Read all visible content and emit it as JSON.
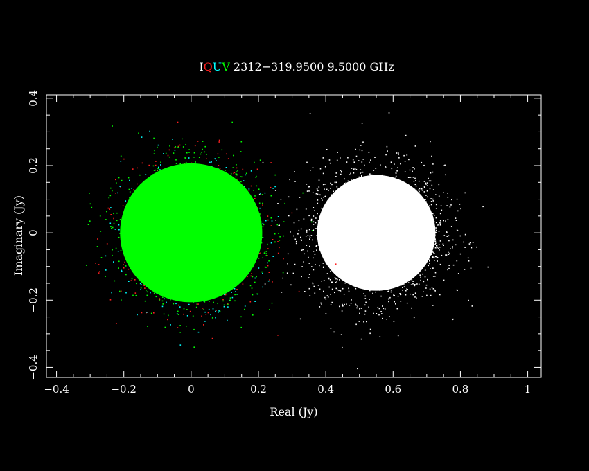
{
  "chart_data": {
    "type": "scatter",
    "title": {
      "prefix": [
        {
          "text": "I",
          "color": "#ffffff"
        },
        {
          "text": "Q",
          "color": "#ff2020"
        },
        {
          "text": "U",
          "color": "#00ffff"
        },
        {
          "text": "V",
          "color": "#00ff00"
        }
      ],
      "text": "2312−319.9500  9.5000 GHz"
    },
    "xlabel": "Real (Jy)",
    "ylabel": "Imaginary (Jy)",
    "xlim": [
      -0.43,
      1.04
    ],
    "ylim": [
      -0.43,
      0.41
    ],
    "xticks": [
      {
        "value": -0.4,
        "label": "−0.4"
      },
      {
        "value": -0.2,
        "label": "−0.2"
      },
      {
        "value": 0,
        "label": "0"
      },
      {
        "value": 0.2,
        "label": "0.2"
      },
      {
        "value": 0.4,
        "label": "0.4"
      },
      {
        "value": 0.6,
        "label": "0.6"
      },
      {
        "value": 0.8,
        "label": "0.8"
      },
      {
        "value": 1,
        "label": "1"
      }
    ],
    "yticks": [
      {
        "value": -0.4,
        "label": "−0.4"
      },
      {
        "value": -0.2,
        "label": "−0.2"
      },
      {
        "value": 0,
        "label": "0"
      },
      {
        "value": 0.2,
        "label": "0.2"
      },
      {
        "value": 0.4,
        "label": "0.4"
      }
    ],
    "grid": false,
    "series": [
      {
        "name": "I",
        "color": "#ffffff",
        "center": [
          0.55,
          0.0
        ],
        "spread": 0.1,
        "core_radius": 0.2
      },
      {
        "name": "Q",
        "color": "#ff2020",
        "center": [
          0.0,
          0.0
        ],
        "spread": 0.1,
        "core_radius": 0.22
      },
      {
        "name": "U",
        "color": "#00ffff",
        "center": [
          0.0,
          0.0
        ],
        "spread": 0.1,
        "core_radius": 0.22
      },
      {
        "name": "V",
        "color": "#00ff00",
        "center": [
          0.0,
          0.0
        ],
        "spread": 0.1,
        "core_radius": 0.24
      }
    ]
  }
}
